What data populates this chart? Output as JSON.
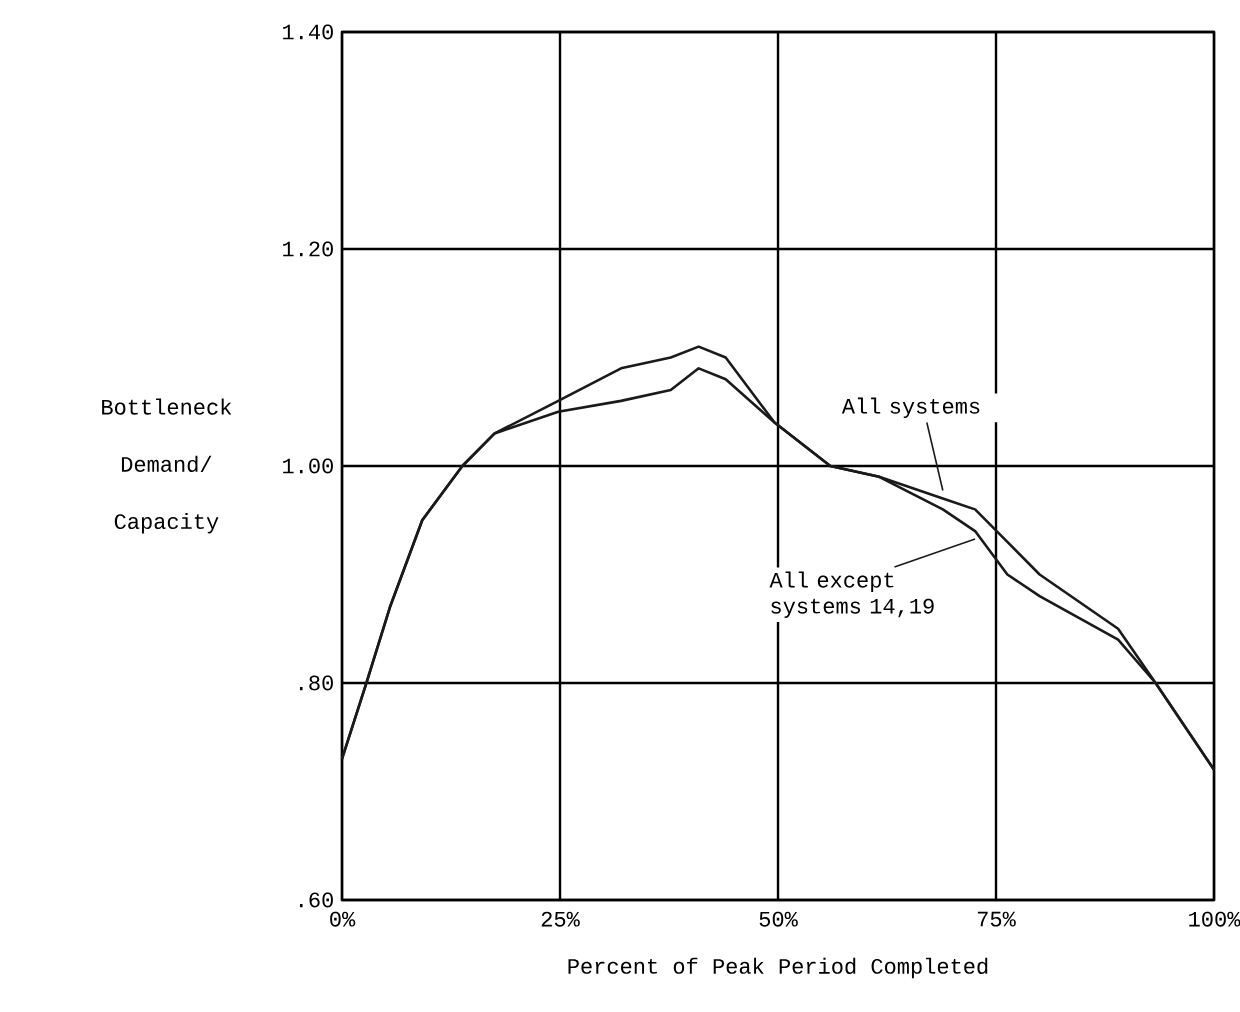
{
  "chart_data": {
    "type": "line",
    "xlabel": "Percent of Peak Period Completed",
    "ylabel": "Bottleneck Demand/ Capacity",
    "x": [
      0,
      2.8,
      5.5,
      9.2,
      13.8,
      17.5,
      24.8,
      32,
      37.7,
      40.9,
      44,
      49.6,
      56,
      61.6,
      68.9,
      72.6,
      76.3,
      80,
      89,
      93.3,
      100
    ],
    "series": [
      {
        "name": "All systems",
        "color": "#1a1a1a",
        "values": [
          0.73,
          0.8,
          0.87,
          0.95,
          1.0,
          1.03,
          1.06,
          1.09,
          1.1,
          1.11,
          1.1,
          1.04,
          1.0,
          0.99,
          0.97,
          0.96,
          0.93,
          0.9,
          0.85,
          0.8,
          0.72
        ]
      },
      {
        "name": "All except systems 14,19",
        "color": "#1a1a1a",
        "values": [
          0.73,
          0.8,
          0.87,
          0.95,
          1.0,
          1.03,
          1.05,
          1.06,
          1.07,
          1.09,
          1.08,
          1.04,
          1.0,
          0.99,
          0.96,
          0.94,
          0.9,
          0.88,
          0.84,
          0.8,
          0.72
        ]
      }
    ],
    "xlim": [
      0,
      100
    ],
    "xticks": [
      {
        "value": 0,
        "label": "0%"
      },
      {
        "value": 25,
        "label": "25%"
      },
      {
        "value": 50,
        "label": "50%"
      },
      {
        "value": 75,
        "label": "75%"
      },
      {
        "value": 100,
        "label": "100%"
      }
    ],
    "ylim": [
      0.6,
      1.4
    ],
    "yticks": [
      {
        "value": 0.6,
        "label": ".60"
      },
      {
        "value": 0.8,
        "label": ".80"
      },
      {
        "value": 1.0,
        "label": "1.00"
      },
      {
        "value": 1.2,
        "label": "1.20"
      },
      {
        "value": 1.4,
        "label": "1.40"
      }
    ],
    "grid": true,
    "line_style": "solid"
  }
}
